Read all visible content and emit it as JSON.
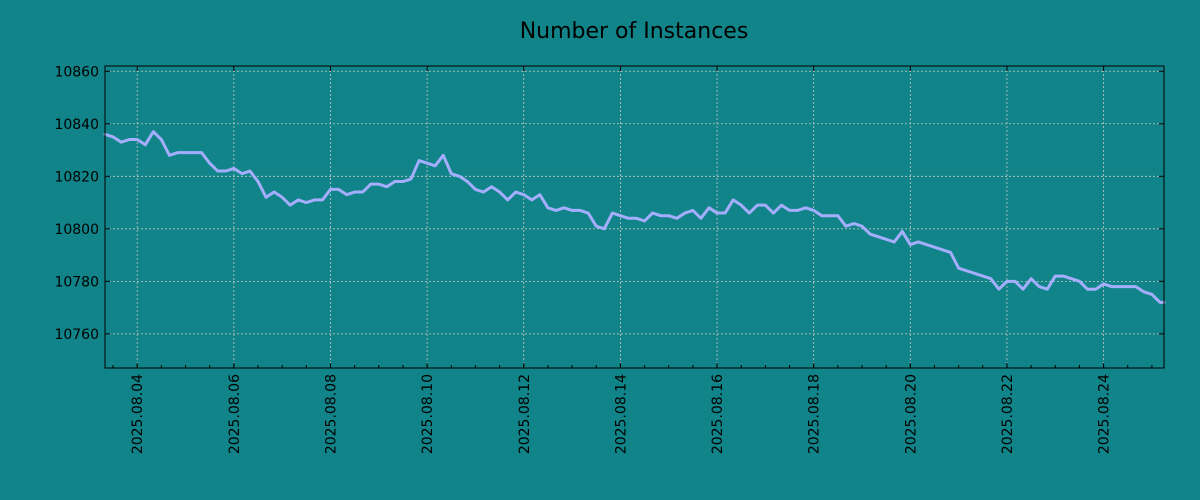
{
  "chart_data": {
    "type": "line",
    "title": "Number of Instances",
    "xlabel": "",
    "ylabel": "",
    "x_tick_labels": [
      "2025.08.04",
      "2025.08.06",
      "2025.08.08",
      "2025.08.10",
      "2025.08.12",
      "2025.08.14",
      "2025.08.16",
      "2025.08.18",
      "2025.08.20",
      "2025.08.22",
      "2025.08.24"
    ],
    "y_ticks": [
      10760,
      10780,
      10800,
      10820,
      10840,
      10860
    ],
    "y_tick_labels": [
      "10760",
      "10780",
      "10800",
      "10820",
      "10840",
      "10860"
    ],
    "xlim": [
      "2025-08-03 08:00",
      "2025-08-25 06:00"
    ],
    "ylim": [
      10747,
      10862
    ],
    "grid": true,
    "colors": {
      "background": "#108488",
      "plot_background": "#108488",
      "line": "#a4aefc",
      "grid": "#c8c8c8"
    },
    "series": [
      {
        "x": [
          "2025-08-03 08:00",
          "2025-08-03 12:00",
          "2025-08-03 16:00",
          "2025-08-03 20:00",
          "2025-08-04 00:00",
          "2025-08-04 04:00",
          "2025-08-04 08:00",
          "2025-08-04 12:00",
          "2025-08-04 16:00",
          "2025-08-04 20:00",
          "2025-08-05 00:00",
          "2025-08-05 04:00",
          "2025-08-05 08:00",
          "2025-08-05 12:00",
          "2025-08-05 16:00",
          "2025-08-05 20:00",
          "2025-08-06 00:00",
          "2025-08-06 04:00",
          "2025-08-06 08:00",
          "2025-08-06 12:00",
          "2025-08-06 16:00",
          "2025-08-06 20:00",
          "2025-08-07 00:00",
          "2025-08-07 04:00",
          "2025-08-07 08:00",
          "2025-08-07 12:00",
          "2025-08-07 16:00",
          "2025-08-07 20:00",
          "2025-08-08 00:00",
          "2025-08-08 04:00",
          "2025-08-08 08:00",
          "2025-08-08 12:00",
          "2025-08-08 16:00",
          "2025-08-08 20:00",
          "2025-08-09 00:00",
          "2025-08-09 04:00",
          "2025-08-09 08:00",
          "2025-08-09 12:00",
          "2025-08-09 16:00",
          "2025-08-09 20:00",
          "2025-08-10 00:00",
          "2025-08-10 04:00",
          "2025-08-10 08:00",
          "2025-08-10 12:00",
          "2025-08-10 16:00",
          "2025-08-10 20:00",
          "2025-08-11 00:00",
          "2025-08-11 04:00",
          "2025-08-11 08:00",
          "2025-08-11 12:00",
          "2025-08-11 16:00",
          "2025-08-11 20:00",
          "2025-08-12 00:00",
          "2025-08-12 04:00",
          "2025-08-12 08:00",
          "2025-08-12 12:00",
          "2025-08-12 16:00",
          "2025-08-12 20:00",
          "2025-08-13 00:00",
          "2025-08-13 04:00",
          "2025-08-13 08:00",
          "2025-08-13 12:00",
          "2025-08-13 16:00",
          "2025-08-13 20:00",
          "2025-08-14 00:00",
          "2025-08-14 04:00",
          "2025-08-14 08:00",
          "2025-08-14 12:00",
          "2025-08-14 16:00",
          "2025-08-14 20:00",
          "2025-08-15 00:00",
          "2025-08-15 04:00",
          "2025-08-15 08:00",
          "2025-08-15 12:00",
          "2025-08-15 16:00",
          "2025-08-15 20:00",
          "2025-08-16 00:00",
          "2025-08-16 04:00",
          "2025-08-16 08:00",
          "2025-08-16 12:00",
          "2025-08-16 16:00",
          "2025-08-16 20:00",
          "2025-08-17 00:00",
          "2025-08-17 04:00",
          "2025-08-17 08:00",
          "2025-08-17 12:00",
          "2025-08-17 16:00",
          "2025-08-17 20:00",
          "2025-08-18 00:00",
          "2025-08-18 04:00",
          "2025-08-18 08:00",
          "2025-08-18 12:00",
          "2025-08-18 16:00",
          "2025-08-18 20:00",
          "2025-08-19 00:00",
          "2025-08-19 04:00",
          "2025-08-19 08:00",
          "2025-08-19 12:00",
          "2025-08-19 16:00",
          "2025-08-19 20:00",
          "2025-08-20 00:00",
          "2025-08-20 04:00",
          "2025-08-20 08:00",
          "2025-08-20 12:00",
          "2025-08-20 16:00",
          "2025-08-20 20:00",
          "2025-08-21 00:00",
          "2025-08-21 04:00",
          "2025-08-21 08:00",
          "2025-08-21 12:00",
          "2025-08-21 16:00",
          "2025-08-21 20:00",
          "2025-08-22 00:00",
          "2025-08-22 04:00",
          "2025-08-22 08:00",
          "2025-08-22 12:00",
          "2025-08-22 16:00",
          "2025-08-22 20:00",
          "2025-08-23 00:00",
          "2025-08-23 04:00",
          "2025-08-23 08:00",
          "2025-08-23 12:00",
          "2025-08-23 16:00",
          "2025-08-23 20:00",
          "2025-08-24 00:00",
          "2025-08-24 04:00",
          "2025-08-24 08:00",
          "2025-08-24 12:00",
          "2025-08-24 16:00",
          "2025-08-24 20:00",
          "2025-08-25 00:00",
          "2025-08-25 04:00",
          "2025-08-25 06:00"
        ],
        "values": [
          10836,
          10835,
          10833,
          10834,
          10834,
          10832,
          10837,
          10834,
          10828,
          10829,
          10829,
          10829,
          10829,
          10825,
          10822,
          10822,
          10823,
          10821,
          10822,
          10818,
          10812,
          10814,
          10812,
          10809,
          10811,
          10810,
          10811,
          10811,
          10815,
          10815,
          10813,
          10814,
          10814,
          10817,
          10817,
          10816,
          10818,
          10818,
          10819,
          10826,
          10825,
          10824,
          10828,
          10821,
          10820,
          10818,
          10815,
          10814,
          10816,
          10814,
          10811,
          10814,
          10813,
          10811,
          10813,
          10808,
          10807,
          10808,
          10807,
          10807,
          10806,
          10801,
          10800,
          10806,
          10805,
          10804,
          10804,
          10803,
          10806,
          10805,
          10805,
          10804,
          10806,
          10807,
          10804,
          10808,
          10806,
          10806,
          10811,
          10809,
          10806,
          10809,
          10809,
          10806,
          10809,
          10807,
          10807,
          10808,
          10807,
          10805,
          10805,
          10805,
          10801,
          10802,
          10801,
          10798,
          10797,
          10796,
          10795,
          10799,
          10794,
          10795,
          10794,
          10793,
          10792,
          10791,
          10785,
          10784,
          10783,
          10782,
          10781,
          10777,
          10780,
          10780,
          10777,
          10781,
          10778,
          10777,
          10782,
          10782,
          10781,
          10780,
          10777,
          10777,
          10779,
          10778,
          10778,
          10778,
          10778,
          10776,
          10775,
          10772,
          10772
        ]
      }
    ]
  }
}
